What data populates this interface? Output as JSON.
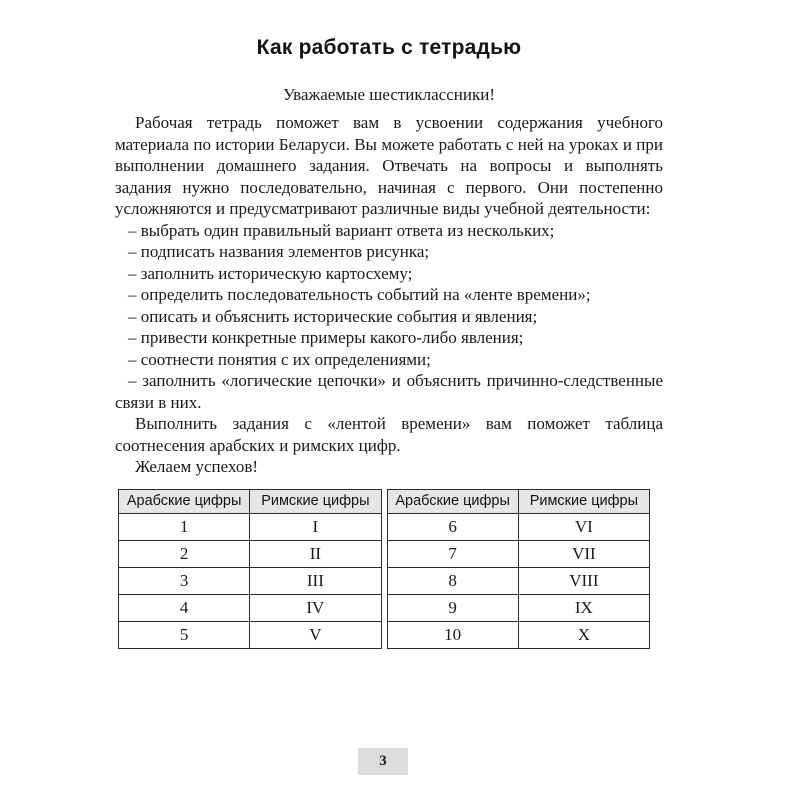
{
  "page": {
    "title": "Как работать с тетрадью",
    "salutation": "Уважаемые шестиклассники!",
    "paragraph1": "Рабочая тетрадь поможет вам в усвоении содержания учебного материала по истории Беларуси. Вы можете работать с ней на уроках и при выполнении домашнего задания. Отвечать на вопросы и выполнять задания нужно последовательно, начиная с первого. Они постепенно усложняются и предусматривают различные виды учебной деятельности:",
    "activities": [
      "– выбрать один правильный вариант ответа из нескольких;",
      "– подписать названия элементов рисунка;",
      "– заполнить историческую картосхему;",
      "– определить последовательность событий на «ленте времени»;",
      "– описать и объяснить исторические события и явления;",
      "– привести конкретные примеры какого-либо явления;",
      "– соотнести понятия с их определениями;",
      "– заполнить «логические цепочки» и объяснить причинно-следственные связи в них."
    ],
    "paragraph2": "Выполнить задания с «лентой времени» вам поможет таблица соотнесения арабских и римских цифр.",
    "paragraph3": "Желаем успехов!",
    "page_number": "3"
  },
  "numerals_table": {
    "left": {
      "headers": [
        "Арабские цифры",
        "Римские цифры"
      ],
      "rows": [
        [
          "1",
          "I"
        ],
        [
          "2",
          "II"
        ],
        [
          "3",
          "III"
        ],
        [
          "4",
          "IV"
        ],
        [
          "5",
          "V"
        ]
      ]
    },
    "right": {
      "headers": [
        "Арабские цифры",
        "Римские цифры"
      ],
      "rows": [
        [
          "6",
          "VI"
        ],
        [
          "7",
          "VII"
        ],
        [
          "8",
          "VIII"
        ],
        [
          "9",
          "IX"
        ],
        [
          "10",
          "X"
        ]
      ]
    }
  },
  "colors": {
    "header_fill": "#e6e6e6",
    "page_number_fill": "#dcdcdc",
    "text_color": "#1a1a1a",
    "border_color": "#2b2b2b"
  }
}
